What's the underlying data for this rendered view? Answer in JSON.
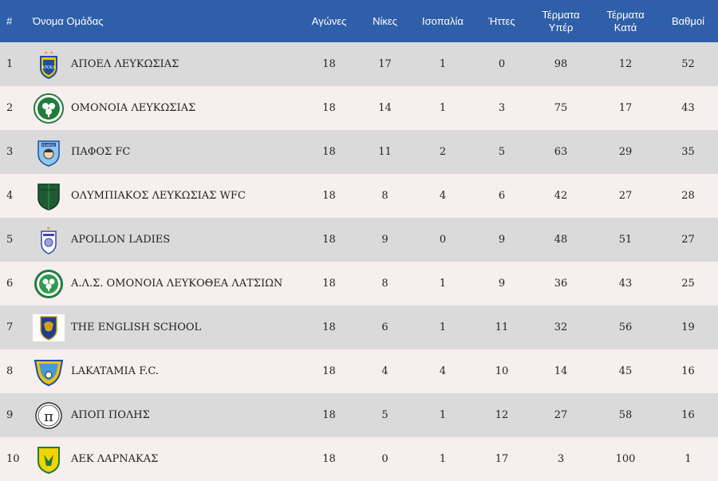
{
  "table": {
    "headers": {
      "rank": "#",
      "team": "Όνομα Ομάδας",
      "played": "Αγώνες",
      "wins": "Νίκες",
      "draws": "Ισοπαλία",
      "losses": "Ήττες",
      "goals_for": "Τέρματα Υπέρ",
      "goals_against": "Τέρματα Κατά",
      "points": "Βαθμοί"
    },
    "rows": [
      {
        "rank": "1",
        "team": "ΑΠΟΕΛ ΛΕΥΚΩΣΙΑΣ",
        "logo": "apoel-crest-icon",
        "played": "18",
        "wins": "17",
        "draws": "1",
        "losses": "0",
        "gf": "98",
        "ga": "12",
        "pts": "52"
      },
      {
        "rank": "2",
        "team": "ΟΜΟΝΟΙΑ ΛΕΥΚΩΣΙΑΣ",
        "logo": "omonoia-clover-icon",
        "played": "18",
        "wins": "14",
        "draws": "1",
        "losses": "3",
        "gf": "75",
        "ga": "17",
        "pts": "43"
      },
      {
        "rank": "3",
        "team": "ΠΑΦΟΣ FC",
        "logo": "pafos-crest-icon",
        "played": "18",
        "wins": "11",
        "draws": "2",
        "losses": "5",
        "gf": "63",
        "ga": "29",
        "pts": "35"
      },
      {
        "rank": "4",
        "team": "ΟΛΥΜΠΙΑΚΟΣ ΛΕΥΚΩΣΙΑΣ WFC",
        "logo": "olympiakos-shield-icon",
        "played": "18",
        "wins": "8",
        "draws": "4",
        "losses": "6",
        "gf": "42",
        "ga": "27",
        "pts": "28"
      },
      {
        "rank": "5",
        "team": "APOLLON LADIES",
        "logo": "apollon-crest-icon",
        "played": "18",
        "wins": "9",
        "draws": "0",
        "losses": "9",
        "gf": "48",
        "ga": "51",
        "pts": "27"
      },
      {
        "rank": "6",
        "team": "Α.Λ.Σ. ΟΜΟΝΟΙΑ ΛΕΥΚΟΘΕΑ ΛΑΤΣΙΩΝ",
        "logo": "omonoia-latsion-clover-icon",
        "played": "18",
        "wins": "8",
        "draws": "1",
        "losses": "9",
        "gf": "36",
        "ga": "43",
        "pts": "25"
      },
      {
        "rank": "7",
        "team": "THE ENGLISH SCHOOL",
        "logo": "english-school-lion-icon",
        "played": "18",
        "wins": "6",
        "draws": "1",
        "losses": "11",
        "gf": "32",
        "ga": "56",
        "pts": "19"
      },
      {
        "rank": "8",
        "team": "LAKATAMIA F.C.",
        "logo": "lakatamia-shield-icon",
        "played": "18",
        "wins": "4",
        "draws": "4",
        "losses": "10",
        "gf": "14",
        "ga": "45",
        "pts": "16"
      },
      {
        "rank": "9",
        "team": "ΑΠΟΠ ΠΟΛΗΣ",
        "logo": "apop-pi-icon",
        "played": "18",
        "wins": "5",
        "draws": "1",
        "losses": "12",
        "gf": "27",
        "ga": "58",
        "pts": "16"
      },
      {
        "rank": "10",
        "team": "ΑΕΚ ΛΑΡΝΑΚΑΣ",
        "logo": "aek-eagle-icon",
        "played": "18",
        "wins": "0",
        "draws": "1",
        "losses": "17",
        "gf": "3",
        "ga": "100",
        "pts": "1"
      }
    ]
  },
  "colors": {
    "header_bg": "#2f5fa8",
    "row_odd": "#dadada",
    "row_even": "#f7eeee"
  }
}
